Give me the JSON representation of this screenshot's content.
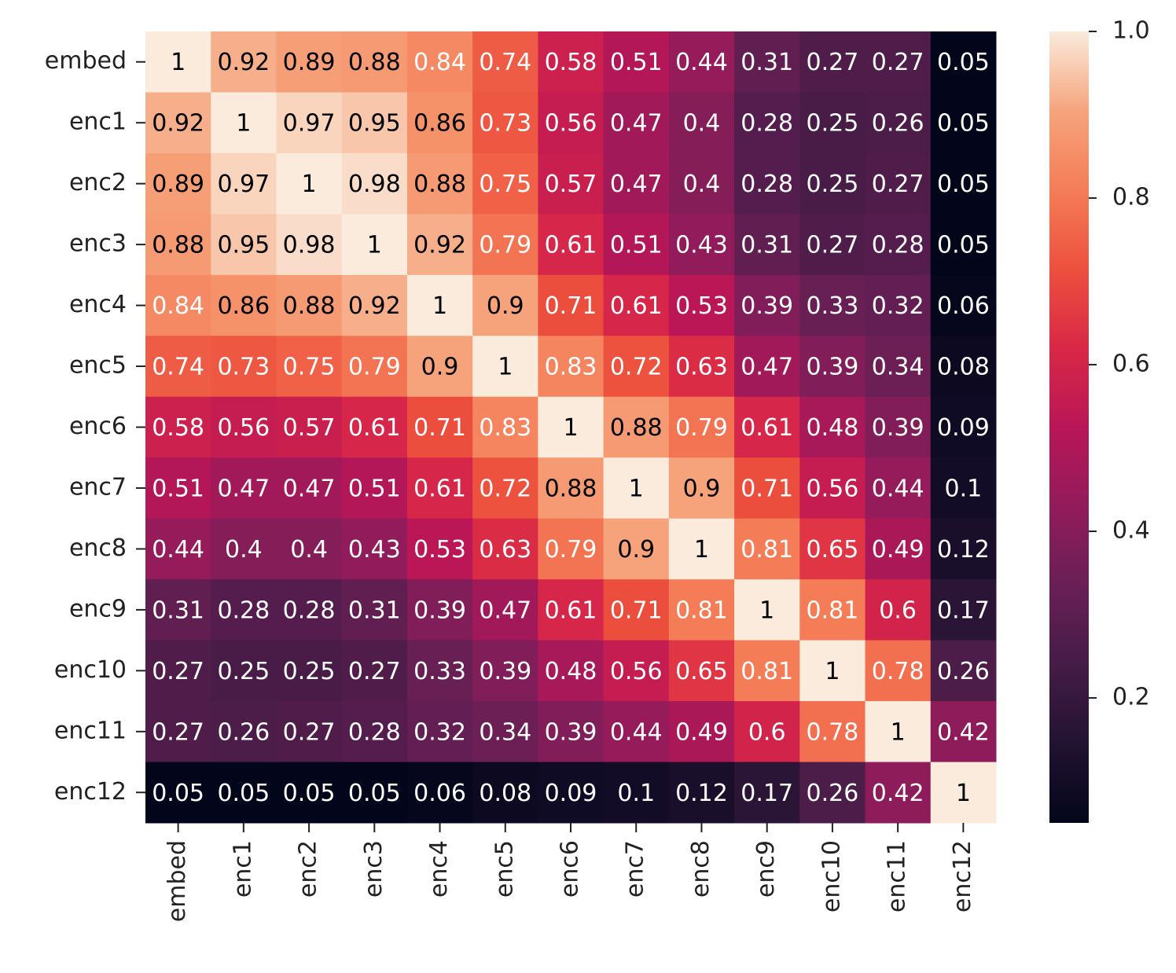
{
  "chart_data": {
    "type": "heatmap",
    "categories": [
      "embed",
      "enc1",
      "enc2",
      "enc3",
      "enc4",
      "enc5",
      "enc6",
      "enc7",
      "enc8",
      "enc9",
      "enc10",
      "enc11",
      "enc12"
    ],
    "values": [
      [
        1,
        0.92,
        0.89,
        0.88,
        0.84,
        0.74,
        0.58,
        0.51,
        0.44,
        0.31,
        0.27,
        0.27,
        0.05
      ],
      [
        0.92,
        1,
        0.97,
        0.95,
        0.86,
        0.73,
        0.56,
        0.47,
        0.4,
        0.28,
        0.25,
        0.26,
        0.05
      ],
      [
        0.89,
        0.97,
        1,
        0.98,
        0.88,
        0.75,
        0.57,
        0.47,
        0.4,
        0.28,
        0.25,
        0.27,
        0.05
      ],
      [
        0.88,
        0.95,
        0.98,
        1,
        0.92,
        0.79,
        0.61,
        0.51,
        0.43,
        0.31,
        0.27,
        0.28,
        0.05
      ],
      [
        0.84,
        0.86,
        0.88,
        0.92,
        1,
        0.9,
        0.71,
        0.61,
        0.53,
        0.39,
        0.33,
        0.32,
        0.06
      ],
      [
        0.74,
        0.73,
        0.75,
        0.79,
        0.9,
        1,
        0.83,
        0.72,
        0.63,
        0.47,
        0.39,
        0.34,
        0.08
      ],
      [
        0.58,
        0.56,
        0.57,
        0.61,
        0.71,
        0.83,
        1,
        0.88,
        0.79,
        0.61,
        0.48,
        0.39,
        0.09
      ],
      [
        0.51,
        0.47,
        0.47,
        0.51,
        0.61,
        0.72,
        0.88,
        1,
        0.9,
        0.71,
        0.56,
        0.44,
        0.1
      ],
      [
        0.44,
        0.4,
        0.4,
        0.43,
        0.53,
        0.63,
        0.79,
        0.9,
        1,
        0.81,
        0.65,
        0.49,
        0.12
      ],
      [
        0.31,
        0.28,
        0.28,
        0.31,
        0.39,
        0.47,
        0.61,
        0.71,
        0.81,
        1,
        0.81,
        0.6,
        0.17
      ],
      [
        0.27,
        0.25,
        0.25,
        0.27,
        0.33,
        0.39,
        0.48,
        0.56,
        0.65,
        0.81,
        1,
        0.78,
        0.26
      ],
      [
        0.27,
        0.26,
        0.27,
        0.28,
        0.32,
        0.34,
        0.39,
        0.44,
        0.49,
        0.6,
        0.78,
        1,
        0.42
      ],
      [
        0.05,
        0.05,
        0.05,
        0.05,
        0.06,
        0.08,
        0.09,
        0.1,
        0.12,
        0.17,
        0.26,
        0.42,
        1
      ]
    ],
    "clim": [
      0.05,
      1
    ],
    "cticks": [
      0.2,
      0.4,
      0.6,
      0.8,
      {
        "value": 1,
        "label": "1.0"
      }
    ],
    "colormap": [
      "#03051a",
      "#221331",
      "#451c47",
      "#691f55",
      "#921c5b",
      "#b91657",
      "#d92847",
      "#ed503e",
      "#f47d57",
      "#f6a47c",
      "#faebdd"
    ]
  }
}
